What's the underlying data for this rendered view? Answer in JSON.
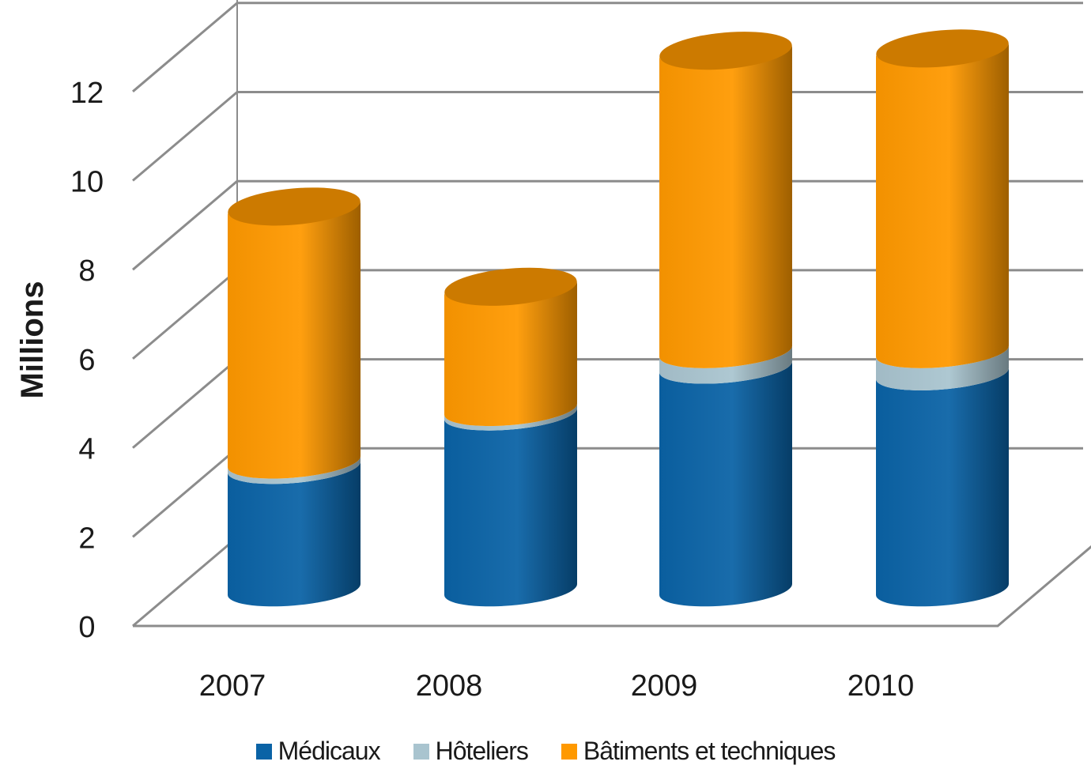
{
  "chart_data": {
    "type": "bar",
    "stacked": true,
    "style": "3d-cylinder",
    "categories": [
      "2007",
      "2008",
      "2009",
      "2010"
    ],
    "series": [
      {
        "name": "Médicaux",
        "values": [
          2.75,
          3.95,
          5.0,
          4.85
        ],
        "color": "#0a63a6"
      },
      {
        "name": "Hôteliers",
        "values": [
          0.12,
          0.1,
          0.35,
          0.5
        ],
        "color": "#a9c4cf"
      },
      {
        "name": "Bâtiments et techniques",
        "values": [
          5.73,
          2.75,
          6.75,
          6.8
        ],
        "color": "#ff9900"
      }
    ],
    "ylabel": "Millions",
    "ylim": [
      0,
      12
    ],
    "yticks": [
      0,
      2,
      4,
      6,
      8,
      10,
      12
    ],
    "grid": true,
    "legend_position": "bottom"
  }
}
